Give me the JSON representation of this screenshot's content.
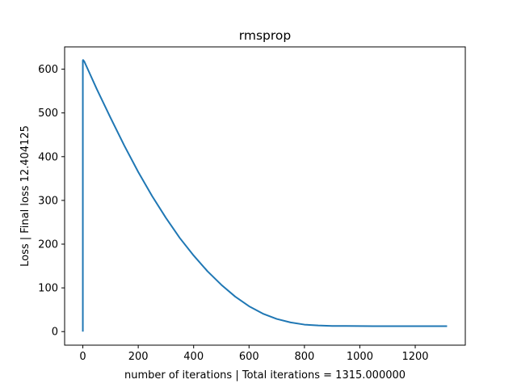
{
  "chart_data": {
    "type": "line",
    "title": "rmsprop",
    "xlabel": "number of iterations | Total iterations = 1315.000000",
    "ylabel": "Loss | Final loss 12.404125",
    "xlim": [
      -65.75,
      1380.75
    ],
    "ylim": [
      -31.0,
      651.0
    ],
    "xticks": [
      0,
      200,
      400,
      600,
      800,
      1000,
      1200
    ],
    "yticks": [
      0,
      100,
      200,
      300,
      400,
      500,
      600
    ],
    "grid": false,
    "legend": "none",
    "series": [
      {
        "color": "#1f77b4",
        "x": [
          0,
          0,
          1,
          5,
          25,
          50,
          75,
          100,
          150,
          200,
          250,
          300,
          350,
          400,
          450,
          500,
          550,
          600,
          650,
          700,
          750,
          800,
          850,
          900,
          950,
          1000,
          1050,
          1100,
          1150,
          1200,
          1250,
          1315
        ],
        "y": [
          0,
          620,
          621,
          618,
          590,
          555,
          522,
          489,
          425,
          365,
          310,
          260,
          214,
          174,
          138,
          107,
          80,
          58,
          41,
          29,
          21,
          16,
          14,
          13,
          12.8,
          12.6,
          12.5,
          12.45,
          12.42,
          12.41,
          12.405,
          12.404
        ]
      }
    ]
  }
}
